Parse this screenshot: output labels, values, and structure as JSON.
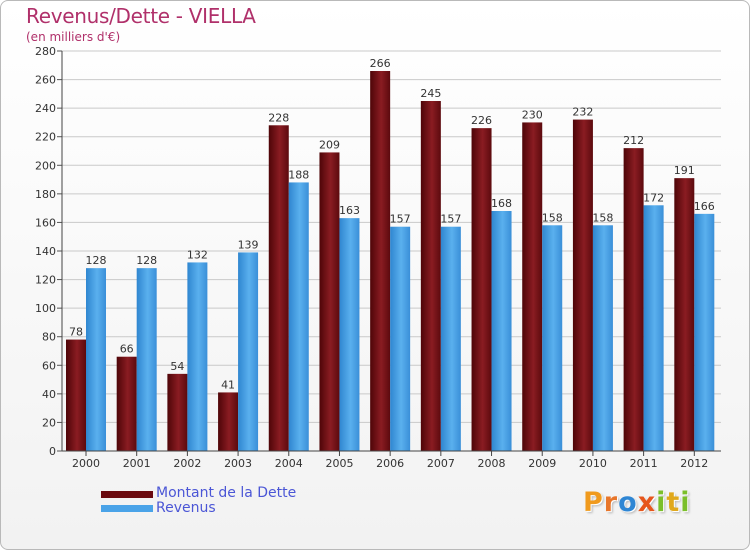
{
  "title": "Revenus/Dette - VIELLA",
  "subtitle": "(en milliers d'€)",
  "legend": {
    "items": [
      {
        "label": "Montant de la Dette",
        "color": "#6b0a0f"
      },
      {
        "label": "Revenus",
        "color": "#4aa3e8"
      }
    ]
  },
  "logo": {
    "text": "Proxiti",
    "letters": [
      {
        "char": "P",
        "color": "#f09a1d"
      },
      {
        "char": "r",
        "color": "#e8762a"
      },
      {
        "char": "o",
        "color": "#2e86d4"
      },
      {
        "char": "x",
        "color": "#e6561c"
      },
      {
        "char": "i",
        "color": "#7bbf2a"
      },
      {
        "char": "t",
        "color": "#e0a81c"
      },
      {
        "char": "i",
        "color": "#7bbf2a"
      }
    ]
  },
  "chart_data": {
    "type": "bar",
    "categories": [
      "2000",
      "2001",
      "2002",
      "2003",
      "2004",
      "2005",
      "2006",
      "2007",
      "2008",
      "2009",
      "2010",
      "2011",
      "2012"
    ],
    "series": [
      {
        "name": "Montant de la Dette",
        "color": "#6b0a0f",
        "values": [
          78,
          66,
          54,
          41,
          228,
          209,
          266,
          245,
          226,
          230,
          232,
          212,
          191
        ]
      },
      {
        "name": "Revenus",
        "color": "#4aa3e8",
        "values": [
          128,
          128,
          132,
          139,
          188,
          163,
          157,
          157,
          168,
          158,
          158,
          172,
          166
        ]
      }
    ],
    "ylim": [
      0,
      280
    ],
    "yticks": [
      0,
      20,
      40,
      60,
      80,
      100,
      120,
      140,
      160,
      180,
      200,
      220,
      240,
      260,
      280
    ],
    "grid": true,
    "legend_position": "bottom-left"
  }
}
